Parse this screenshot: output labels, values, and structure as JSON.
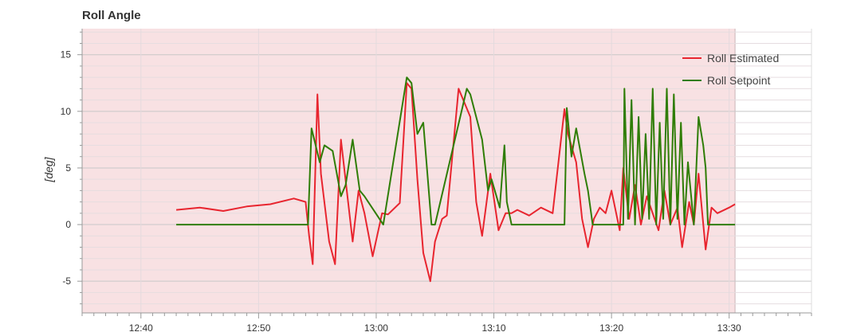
{
  "chart_data": {
    "type": "line",
    "title": "Roll Angle",
    "xlabel": "",
    "ylabel": "[deg]",
    "x_ticks": [
      "12:40",
      "12:50",
      "13:00",
      "13:10",
      "13:20",
      "13:30"
    ],
    "x_range": [
      "12:35",
      "13:37"
    ],
    "y_ticks": [
      15,
      10,
      5,
      0,
      -5
    ],
    "ylim": [
      -7.8,
      17.3
    ],
    "grid": true,
    "legend_position": "top-right",
    "shaded_region": {
      "x_start": "12:35",
      "x_end": "13:30.5",
      "color": "#f8e1e3"
    },
    "series": [
      {
        "name": "Roll Estimated",
        "color": "#e8252f",
        "x": [
          "12:43",
          "12:45",
          "12:47",
          "12:49",
          "12:51",
          "12:53",
          "12:54",
          "12:54.3",
          "12:54.6",
          "12:55",
          "12:55.3",
          "12:56",
          "12:56.5",
          "12:57",
          "12:58",
          "12:58.5",
          "12:59",
          "12:59.7",
          "13:00.5",
          "13:01",
          "13:02",
          "13:02.6",
          "13:03",
          "13:03.5",
          "13:04",
          "13:04.6",
          "13:05",
          "13:05.6",
          "13:06",
          "13:07",
          "13:08",
          "13:08.5",
          "13:09",
          "13:09.7",
          "13:10.4",
          "13:11",
          "13:11.5",
          "13:12",
          "13:13",
          "13:14",
          "13:15",
          "13:16",
          "13:16.3",
          "13:17",
          "13:17.5",
          "13:18",
          "13:18.5",
          "13:19",
          "13:19.5",
          "13:20",
          "13:20.7",
          "13:21",
          "13:21.5",
          "13:22",
          "13:22.5",
          "13:23",
          "13:24",
          "13:24.5",
          "13:25",
          "13:25.6",
          "13:26",
          "13:26.6",
          "13:27",
          "13:27.4",
          "13:28",
          "13:28.5",
          "13:29",
          "13:30",
          "13:30.5"
        ],
        "values": [
          1.3,
          1.5,
          1.2,
          1.6,
          1.8,
          2.3,
          2.0,
          -1.0,
          -3.5,
          11.5,
          4.5,
          -1.5,
          -3.5,
          7.5,
          -1.5,
          3.0,
          1.0,
          -2.8,
          1.0,
          0.9,
          1.9,
          12.5,
          12.0,
          4.0,
          -2.5,
          -5.0,
          -1.5,
          0.5,
          0.8,
          12.0,
          9.5,
          2.0,
          -1.0,
          4.5,
          -0.5,
          1.0,
          1.0,
          1.3,
          0.8,
          1.5,
          1.0,
          10.2,
          8.0,
          5.5,
          0.5,
          -2.0,
          0.5,
          1.5,
          1.0,
          3.0,
          -0.5,
          5.0,
          0.5,
          3.5,
          0.0,
          2.5,
          -0.5,
          3.0,
          0.0,
          1.5,
          -2.0,
          2.0,
          0.0,
          4.5,
          -2.2,
          1.5,
          1.0,
          1.5,
          1.8
        ]
      },
      {
        "name": "Roll Setpoint",
        "color": "#2f7d06",
        "x": [
          "12:43",
          "12:54.2",
          "12:54.5",
          "12:55.2",
          "12:55.6",
          "12:56.3",
          "12:57",
          "12:57.4",
          "12:58",
          "12:58.6",
          "12:59",
          "13:00.6",
          "13:02.6",
          "13:03",
          "13:03.5",
          "13:04",
          "13:04.7",
          "13:05",
          "13:07.7",
          "13:08",
          "13:09",
          "13:09.5",
          "13:09.8",
          "13:10.5",
          "13:10.9",
          "13:11.1",
          "13:11.5",
          "13:16",
          "13:16.2",
          "13:16.6",
          "13:17",
          "13:17.7",
          "13:18",
          "13:18.4",
          "13:18.8",
          "13:21",
          "13:21.1",
          "13:21.4",
          "13:21.7",
          "13:22",
          "13:22.3",
          "13:22.6",
          "13:22.9",
          "13:23.2",
          "13:23.5",
          "13:23.8",
          "13:24.1",
          "13:24.4",
          "13:24.7",
          "13:25",
          "13:25.3",
          "13:25.6",
          "13:25.9",
          "13:26.2",
          "13:26.5",
          "13:27",
          "13:27.4",
          "13:27.8",
          "13:28",
          "13:28.2",
          "13:30.5"
        ],
        "values": [
          0.0,
          0.0,
          8.5,
          5.5,
          7.0,
          6.5,
          2.5,
          3.5,
          7.5,
          3.0,
          2.5,
          0.0,
          13.0,
          12.5,
          8.0,
          9.0,
          0.0,
          0.0,
          12.0,
          11.5,
          7.5,
          3.0,
          4.0,
          1.5,
          7.0,
          2.0,
          0.0,
          0.0,
          10.3,
          6.0,
          8.5,
          4.5,
          3.0,
          0.0,
          0.0,
          0.0,
          12.0,
          0.5,
          11.0,
          0.0,
          9.5,
          0.5,
          8.0,
          0.5,
          12.0,
          0.0,
          9.0,
          0.5,
          12.0,
          0.0,
          11.5,
          0.5,
          9.0,
          0.0,
          5.5,
          0.0,
          9.5,
          7.0,
          5.0,
          0.0,
          0.0
        ]
      }
    ]
  }
}
